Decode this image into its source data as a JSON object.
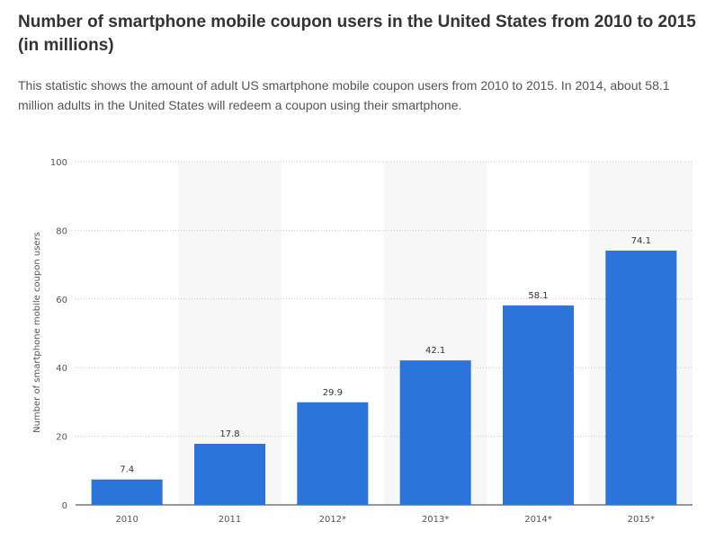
{
  "header": {
    "title": "Number of smartphone mobile coupon users in the United States from 2010 to 2015 (in millions)",
    "description": "This statistic shows the amount of adult US smartphone mobile coupon users from 2010 to 2015. In 2014, about 58.1 million adults in the United States will redeem a coupon using their smartphone."
  },
  "chart_data": {
    "type": "bar",
    "categories": [
      "2010",
      "2011",
      "2012*",
      "2013*",
      "2014*",
      "2015*"
    ],
    "values": [
      7.4,
      17.8,
      29.9,
      42.1,
      58.1,
      74.1
    ],
    "value_labels": [
      "7.4",
      "17.8",
      "29.9",
      "42.1",
      "58.1",
      "74.1"
    ],
    "ylabel": "Number of smartphone mobile coupon users",
    "xlabel": "",
    "ylim": [
      0,
      100
    ],
    "yticks": [
      0,
      20,
      40,
      60,
      80,
      100
    ],
    "grid": true,
    "bar_color": "#2a74dc",
    "alternate_band_color": "#f7f7f7"
  }
}
